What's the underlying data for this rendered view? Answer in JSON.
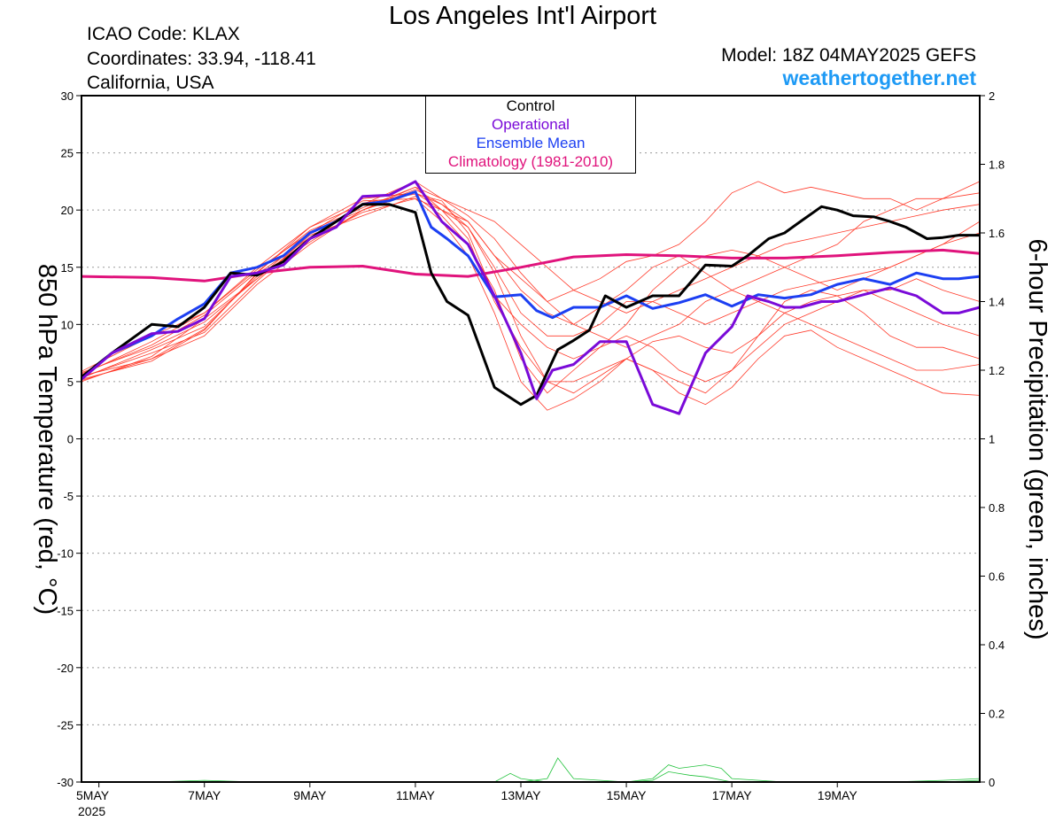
{
  "header": {
    "title": "Los Angeles Int'l Airport",
    "icao": "ICAO Code: KLAX",
    "coords": "Coordinates: 33.94, -118.41",
    "region": "California, USA",
    "model": "Model: 18Z 04MAY2025 GEFS",
    "site": "weathertogether.net"
  },
  "chart_data": {
    "type": "line",
    "ylabel": "850 hPa Temperature (red, °C)",
    "y2label": "6-hour Precipitation (green, inches)",
    "ylim": [
      -30,
      30
    ],
    "y2lim": [
      0,
      2
    ],
    "xlim": [
      -0.33,
      16.7
    ],
    "yticks": [
      "30",
      "25",
      "20",
      "15",
      "10",
      "5",
      "0",
      "-5",
      "-10",
      "-15",
      "-20",
      "-25",
      "-30"
    ],
    "y2ticks": [
      "2",
      "1.8",
      "1.6",
      "1.4",
      "1.2",
      "1",
      "0.8",
      "0.6",
      "0.4",
      "0.2",
      "0"
    ],
    "xticks": [
      {
        "label": "5MAY",
        "sub": "2025",
        "x": 0
      },
      {
        "label": "7MAY",
        "sub": "",
        "x": 2
      },
      {
        "label": "9MAY",
        "sub": "",
        "x": 4
      },
      {
        "label": "11MAY",
        "sub": "",
        "x": 6
      },
      {
        "label": "13MAY",
        "sub": "",
        "x": 8
      },
      {
        "label": "15MAY",
        "sub": "",
        "x": 10
      },
      {
        "label": "17MAY",
        "sub": "",
        "x": 12
      },
      {
        "label": "19MAY",
        "sub": "",
        "x": 14
      }
    ],
    "grid": true,
    "legend_position": "top-center",
    "colors": {
      "control": "#000000",
      "operational": "#7a0ad8",
      "mean": "#1c3ff2",
      "climo": "#e0137c",
      "members": "#ff3a2a",
      "precip": "#22c23c"
    },
    "series": [
      {
        "name": "Control",
        "color": "#000000",
        "x": [
          -0.33,
          0.25,
          1,
          1.5,
          2,
          2.5,
          3,
          3.5,
          4,
          4.5,
          5,
          5.5,
          6,
          6.3,
          6.6,
          7,
          7.5,
          8,
          8.3,
          8.7,
          9,
          9.3,
          9.6,
          10,
          10.5,
          11,
          11.5,
          12,
          12.3,
          12.7,
          13,
          13.3,
          13.7,
          14,
          14.3,
          14.7,
          15,
          15.3,
          15.7,
          16,
          16.3,
          16.7
        ],
        "y": [
          5.4,
          7.5,
          10,
          9.8,
          11.5,
          14.5,
          14.3,
          15.5,
          17.5,
          19,
          20.5,
          20.5,
          19.8,
          14.5,
          12,
          10.8,
          4.5,
          3,
          3.8,
          7.8,
          8.6,
          9.5,
          12.5,
          11.5,
          12.5,
          12.5,
          15.2,
          15.1,
          16,
          17.5,
          18,
          19,
          20.3,
          20,
          19.5,
          19.4,
          19,
          18.5,
          17.5,
          17.6,
          17.8,
          17.8
        ]
      },
      {
        "name": "Operational",
        "color": "#7a0ad8",
        "x": [
          -0.33,
          0.25,
          1,
          1.5,
          2,
          2.5,
          3,
          3.5,
          4,
          4.5,
          5,
          5.5,
          6,
          6.5,
          7,
          7.5,
          8,
          8.3,
          8.6,
          9,
          9.5,
          10,
          10.5,
          11,
          11.5,
          12,
          12.3,
          12.7,
          13,
          13.3,
          13.7,
          14,
          14.5,
          15,
          15.5,
          16,
          16.3,
          16.7
        ],
        "y": [
          5.2,
          7.5,
          9.2,
          9.4,
          10.5,
          14.2,
          14.5,
          15.2,
          17.5,
          18.5,
          21.2,
          21.3,
          22.5,
          19,
          17,
          12.5,
          7.5,
          3.5,
          6,
          6.5,
          8.5,
          8.5,
          3,
          2.2,
          7.5,
          9.8,
          12.5,
          12,
          11.5,
          11.5,
          12,
          12,
          12.6,
          13.2,
          12.5,
          11,
          11,
          11.5
        ]
      },
      {
        "name": "Ensemble Mean",
        "color": "#1c3ff2",
        "x": [
          -0.33,
          0.25,
          1,
          1.5,
          2,
          2.5,
          3,
          3.5,
          4,
          4.5,
          5,
          5.5,
          6,
          6.3,
          6.6,
          7,
          7.5,
          8,
          8.3,
          8.6,
          9,
          9.5,
          10,
          10.5,
          11,
          11.5,
          12,
          12.5,
          13,
          13.5,
          14,
          14.5,
          15,
          15.5,
          16,
          16.3,
          16.7
        ],
        "y": [
          5.4,
          7.5,
          9,
          10.5,
          11.8,
          14.5,
          15,
          16,
          18,
          19,
          20.5,
          20.8,
          21.6,
          18.5,
          17.5,
          16,
          12.4,
          12.6,
          11.2,
          10.6,
          11.5,
          11.5,
          12.5,
          11.4,
          11.9,
          12.6,
          11.6,
          12.6,
          12.3,
          12.6,
          13.5,
          14,
          13.5,
          14.5,
          14,
          14,
          14.2
        ]
      },
      {
        "name": "Climatology (1981-2010)",
        "color": "#e0137c",
        "x": [
          -0.33,
          1,
          2,
          3,
          4,
          5,
          6,
          7,
          8,
          9,
          10,
          11,
          12,
          13,
          14,
          15,
          16,
          16.7
        ],
        "y": [
          14.2,
          14.1,
          13.8,
          14.5,
          15,
          15.1,
          14.4,
          14.2,
          15,
          15.9,
          16.1,
          16,
          15.8,
          15.8,
          16,
          16.3,
          16.5,
          16.2
        ]
      }
    ],
    "members": [
      {
        "x": [
          -0.33,
          1,
          2,
          3,
          4,
          5,
          6,
          6.5,
          7,
          7.5,
          8,
          8.5,
          9,
          9.5,
          10,
          10.5,
          11,
          11.5,
          12,
          12.5,
          13,
          13.5,
          14,
          14.5,
          15,
          15.5,
          16,
          16.7
        ],
        "y": [
          5.8,
          8,
          10.2,
          14,
          18,
          20,
          21.5,
          20,
          19,
          16,
          14,
          12,
          10,
          9,
          8,
          9,
          10,
          12,
          13,
          14,
          15,
          16,
          17,
          19,
          20,
          21,
          21,
          21.5
        ]
      },
      {
        "x": [
          -0.33,
          1,
          2,
          3,
          4,
          5,
          6,
          6.5,
          7,
          7.5,
          8,
          8.5,
          9,
          9.5,
          10,
          10.5,
          11,
          11.5,
          12,
          12.5,
          13,
          13.5,
          14,
          14.5,
          15,
          15.5,
          16,
          16.7
        ],
        "y": [
          5.5,
          7,
          9,
          13.5,
          17,
          20,
          22,
          20,
          17.5,
          12,
          8,
          5,
          5,
          6,
          7,
          6,
          4,
          3,
          4.5,
          7,
          9,
          9.5,
          8,
          7,
          6,
          5,
          4,
          3.8
        ]
      },
      {
        "x": [
          -0.33,
          1,
          2,
          3,
          4,
          5,
          6,
          6.5,
          7,
          7.5,
          8,
          8.5,
          9,
          9.5,
          10,
          10.5,
          11,
          11.5,
          12,
          12.5,
          13,
          13.5,
          14,
          14.5,
          15,
          15.5,
          16,
          16.7
        ],
        "y": [
          5.2,
          6.8,
          9.5,
          14.5,
          18.5,
          20.5,
          22.5,
          21,
          19.5,
          17.5,
          14.5,
          12,
          13,
          14,
          15.5,
          16,
          17,
          19,
          21.5,
          22.5,
          21.5,
          22,
          21.5,
          21,
          21,
          20,
          21,
          22.5
        ]
      },
      {
        "x": [
          -0.33,
          1,
          2,
          3,
          4,
          5,
          6,
          6.5,
          7,
          7.5,
          8,
          8.5,
          9,
          9.5,
          10,
          10.5,
          11,
          11.5,
          12,
          12.5,
          13,
          13.5,
          14,
          14.5,
          15,
          15.5,
          16,
          16.7
        ],
        "y": [
          5.6,
          8.5,
          11,
          14.8,
          18,
          20.8,
          21,
          20,
          18.5,
          15,
          11,
          9,
          9,
          10,
          12,
          12,
          11,
          10,
          11,
          12,
          13,
          13.5,
          14,
          14.5,
          15,
          16,
          17,
          19
        ]
      },
      {
        "x": [
          -0.33,
          1,
          2,
          3,
          4,
          5,
          6,
          6.5,
          7,
          7.5,
          8,
          8.5,
          9,
          9.5,
          10,
          10.5,
          11,
          11.5,
          12,
          12.5,
          13,
          13.5,
          14,
          14.5,
          15,
          15.5,
          16,
          16.7
        ],
        "y": [
          5,
          7.2,
          10.5,
          14,
          17.5,
          19.8,
          21,
          19,
          16,
          11,
          5,
          2.5,
          3.5,
          5,
          7,
          6,
          5,
          4,
          6,
          8,
          10,
          11,
          12,
          13,
          13,
          14,
          13,
          12
        ]
      },
      {
        "x": [
          -0.33,
          1,
          2,
          3,
          4,
          5,
          6,
          6.5,
          7,
          7.5,
          8,
          8.5,
          9,
          9.5,
          10,
          10.5,
          11,
          11.5,
          12,
          12.5,
          13,
          13.5,
          14,
          14.5,
          15,
          15.5,
          16,
          16.7
        ],
        "y": [
          5.9,
          9,
          11,
          15,
          18.5,
          21,
          21.5,
          20.5,
          19,
          16,
          13,
          11,
          10,
          11.5,
          13,
          15,
          16,
          14.5,
          13,
          12,
          11,
          10,
          9,
          8,
          7,
          6,
          6,
          6.5
        ]
      },
      {
        "x": [
          -0.33,
          1,
          2,
          3,
          4,
          5,
          6,
          6.5,
          7,
          7.5,
          8,
          8.5,
          9,
          9.5,
          10,
          10.5,
          11,
          11.5,
          12,
          12.5,
          13,
          13.5,
          14,
          14.5,
          15,
          15.5,
          16,
          16.7
        ],
        "y": [
          5.3,
          7.8,
          9.8,
          14.2,
          17.2,
          20,
          21.8,
          20.5,
          18.5,
          14.5,
          9,
          5,
          4,
          5.5,
          7,
          8.5,
          9,
          8,
          7.5,
          9,
          11,
          12,
          12.5,
          13,
          12,
          11,
          10,
          9
        ]
      },
      {
        "x": [
          -0.33,
          1,
          2,
          3,
          4,
          5,
          6,
          6.5,
          7,
          7.5,
          8,
          8.5,
          9,
          9.5,
          10,
          10.5,
          11,
          11.5,
          12,
          12.5,
          13,
          13.5,
          14,
          14.5,
          15,
          15.5,
          16,
          16.7
        ],
        "y": [
          5.7,
          8.2,
          10.8,
          14.6,
          18.2,
          20.2,
          22,
          21,
          20,
          19,
          17,
          15,
          13,
          12,
          11,
          12,
          13,
          14,
          15,
          16,
          17,
          17.5,
          18,
          18.5,
          19,
          19.5,
          20,
          20.5
        ]
      },
      {
        "x": [
          -0.33,
          1,
          2,
          3,
          4,
          5,
          6,
          6.5,
          7,
          7.5,
          8,
          8.5,
          9,
          9.5,
          10,
          10.5,
          11,
          11.5,
          12,
          12.5,
          13,
          13.5,
          14,
          14.5,
          15,
          15.5,
          16,
          16.7
        ],
        "y": [
          5.4,
          7.5,
          9.3,
          13.8,
          17.8,
          19.5,
          21.2,
          19.5,
          17,
          13,
          7,
          4,
          6,
          8,
          9,
          8,
          6,
          5,
          6,
          9,
          12,
          13,
          12.5,
          11,
          9,
          8,
          8,
          7
        ]
      },
      {
        "x": [
          -0.33,
          1,
          2,
          3,
          4,
          5,
          6,
          6.5,
          7,
          7.5,
          8,
          8.5,
          9,
          9.5,
          10,
          10.5,
          11,
          11.5,
          12,
          12.5,
          13,
          13.5,
          14,
          14.5,
          15,
          15.5,
          16,
          16.7
        ],
        "y": [
          5.1,
          7,
          9.6,
          14.4,
          17.6,
          20.6,
          21.4,
          20.8,
          18,
          12.5,
          10,
          8,
          7,
          8,
          10,
          13,
          15,
          16,
          16.5,
          16,
          15,
          14,
          13,
          14,
          15,
          16,
          17,
          18
        ]
      }
    ],
    "precip_members": [
      {
        "x": [
          -0.33,
          1,
          2,
          3,
          4,
          5,
          6,
          7,
          7.5,
          7.8,
          8,
          8.5,
          9,
          10,
          11,
          12,
          13,
          14,
          15,
          16,
          16.7
        ],
        "y": [
          0,
          0,
          0.005,
          0,
          0,
          0,
          0,
          0,
          0,
          0.025,
          0.01,
          0,
          0,
          0,
          0,
          0,
          0,
          0,
          0,
          0.005,
          0.01
        ]
      },
      {
        "x": [
          -0.33,
          1,
          2,
          3,
          4,
          5,
          6,
          7,
          8,
          8.5,
          8.7,
          9,
          10,
          10.5,
          11,
          12,
          13,
          14,
          15,
          16,
          16.7
        ],
        "y": [
          0,
          0,
          0,
          0,
          0,
          0,
          0,
          0,
          0,
          0.01,
          0.07,
          0.01,
          0,
          0,
          0,
          0,
          0,
          0,
          0,
          0,
          0
        ]
      },
      {
        "x": [
          -0.33,
          1,
          2,
          3,
          4,
          5,
          6,
          7,
          8,
          9,
          10,
          10.5,
          10.8,
          11,
          11.5,
          11.8,
          12,
          13,
          14,
          15,
          16,
          16.7
        ],
        "y": [
          0,
          0,
          0,
          0,
          0,
          0,
          0,
          0,
          0,
          0,
          0,
          0.01,
          0.05,
          0.04,
          0.05,
          0.04,
          0.01,
          0,
          0,
          0,
          0,
          0.005
        ]
      },
      {
        "x": [
          -0.33,
          1,
          2,
          3,
          4,
          5,
          6,
          7,
          8,
          9,
          10,
          10.5,
          10.8,
          11.2,
          11.5,
          12,
          13,
          14,
          15,
          16,
          16.7
        ],
        "y": [
          0,
          0,
          0,
          0,
          0,
          0,
          0,
          0,
          0,
          0,
          0,
          0.005,
          0.03,
          0.02,
          0.015,
          0,
          0,
          0,
          0,
          0,
          0
        ]
      }
    ]
  }
}
